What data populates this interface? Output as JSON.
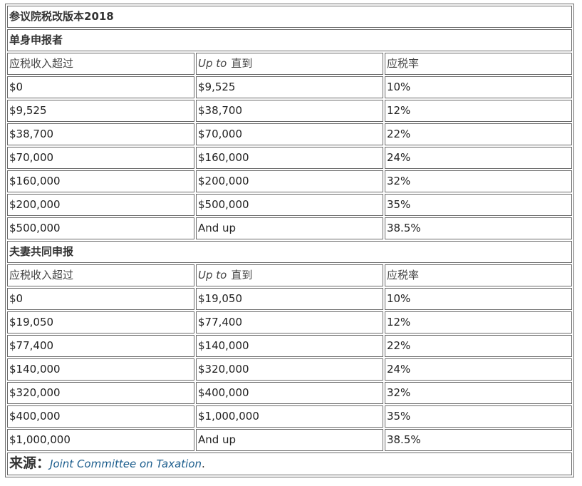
{
  "title": "参议院税改版本2018",
  "single": {
    "section_label": "单身申报者",
    "headers": {
      "over": "应税收入超过",
      "upto_en": "Up to",
      "upto_cn": "直到",
      "rate": "应税率"
    },
    "rows": [
      {
        "over": "$0",
        "upto": "$9,525",
        "rate": "10%"
      },
      {
        "over": "$9,525",
        "upto": "$38,700",
        "rate": "12%"
      },
      {
        "over": "$38,700",
        "upto": "$70,000",
        "rate": "22%"
      },
      {
        "over": "$70,000",
        "upto": "$160,000",
        "rate": "24%"
      },
      {
        "over": "$160,000",
        "upto": "$200,000",
        "rate": "32%"
      },
      {
        "over": "$200,000",
        "upto": "$500,000",
        "rate": "35%"
      },
      {
        "over": "$500,000",
        "upto": "And up",
        "rate": "38.5%"
      }
    ]
  },
  "joint": {
    "section_label": "夫妻共同申报",
    "headers": {
      "over": "应税收入超过",
      "upto_en": "Up to",
      "upto_cn": "直到",
      "rate": "应税率"
    },
    "rows": [
      {
        "over": "$0",
        "upto": "$19,050",
        "rate": "10%"
      },
      {
        "over": "$19,050",
        "upto": "$77,400",
        "rate": "12%"
      },
      {
        "over": "$77,400",
        "upto": "$140,000",
        "rate": "22%"
      },
      {
        "over": "$140,000",
        "upto": "$320,000",
        "rate": "24%"
      },
      {
        "over": "$320,000",
        "upto": "$400,000",
        "rate": "32%"
      },
      {
        "over": "$400,000",
        "upto": "$1,000,000",
        "rate": "35%"
      },
      {
        "over": "$1,000,000",
        "upto": "And up",
        "rate": "38.5%"
      }
    ]
  },
  "source": {
    "label": "来源：",
    "link_text": "Joint Committee on Taxation",
    "suffix": "."
  }
}
